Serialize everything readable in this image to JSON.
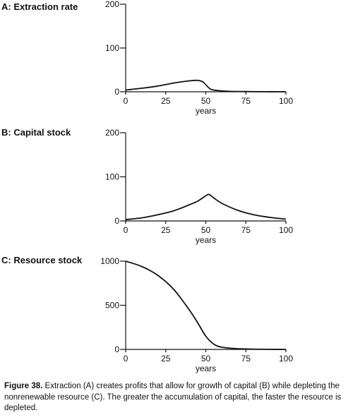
{
  "panels": [
    {
      "label": "A: Extraction rate"
    },
    {
      "label": "B: Capital stock"
    },
    {
      "label": "C: Resource stock"
    }
  ],
  "chart_data": [
    {
      "type": "line",
      "title": "A: Extraction rate",
      "xlabel": "years",
      "ylabel": "",
      "xlim": [
        0,
        100
      ],
      "ylim": [
        0,
        200
      ],
      "xticks": [
        0,
        25,
        50,
        75,
        100
      ],
      "yticks": [
        0,
        100,
        200
      ],
      "grid": false,
      "series": [
        {
          "x": [
            0,
            10,
            20,
            30,
            40,
            45,
            48,
            50,
            53,
            57,
            65,
            75,
            85,
            100
          ],
          "y": [
            4,
            8,
            13,
            20,
            25,
            26,
            23,
            16,
            6,
            3,
            1,
            0.5,
            0.2,
            0
          ]
        }
      ]
    },
    {
      "type": "line",
      "title": "B: Capital stock",
      "xlabel": "years",
      "ylabel": "",
      "xlim": [
        0,
        100
      ],
      "ylim": [
        0,
        200
      ],
      "xticks": [
        0,
        25,
        50,
        75,
        100
      ],
      "yticks": [
        0,
        100,
        200
      ],
      "grid": false,
      "series": [
        {
          "x": [
            0,
            10,
            20,
            30,
            40,
            45,
            50,
            52,
            55,
            60,
            70,
            80,
            90,
            100
          ],
          "y": [
            3,
            7,
            14,
            23,
            37,
            45,
            57,
            60,
            52,
            40,
            24,
            14,
            8,
            4
          ]
        }
      ]
    },
    {
      "type": "line",
      "title": "C: Resource stock",
      "xlabel": "years",
      "ylabel": "",
      "xlim": [
        0,
        100
      ],
      "ylim": [
        0,
        1000
      ],
      "xticks": [
        0,
        25,
        50,
        75,
        100
      ],
      "yticks": [
        0,
        500,
        1000
      ],
      "grid": false,
      "series": [
        {
          "x": [
            0,
            10,
            20,
            30,
            40,
            45,
            50,
            55,
            60,
            70,
            80,
            90,
            100
          ],
          "y": [
            1000,
            940,
            840,
            680,
            440,
            300,
            150,
            60,
            25,
            8,
            3,
            1,
            0
          ]
        }
      ]
    }
  ],
  "caption": {
    "lead": "Figure 38.",
    "text": " Extraction (A) creates profits that allow for growth of capital (B) while depleting the nonrenewable resource (C). The greater the accumulation of capital, the faster the resource is depleted."
  }
}
